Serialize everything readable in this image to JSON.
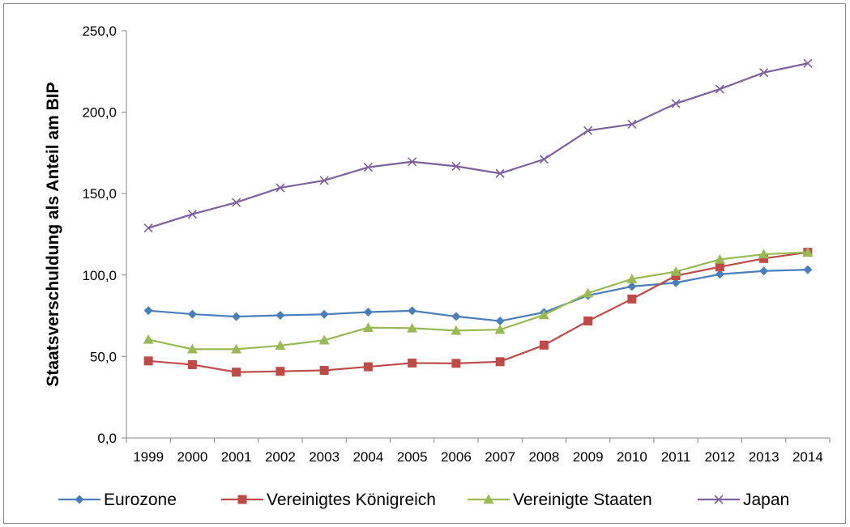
{
  "chart_data": {
    "type": "line",
    "ylabel": "Staatsverschuldung als Anteil am BIP",
    "xlabel": "",
    "title": "",
    "ylim": [
      0,
      250
    ],
    "yticks": [
      "0,0",
      "50,0",
      "100,0",
      "150,0",
      "200,0",
      "250,0"
    ],
    "ytick_values": [
      0,
      50,
      100,
      150,
      200,
      250
    ],
    "categories": [
      "1999",
      "2000",
      "2001",
      "2002",
      "2003",
      "2004",
      "2005",
      "2006",
      "2007",
      "2008",
      "2009",
      "2010",
      "2011",
      "2012",
      "2013",
      "2014"
    ],
    "grid": false,
    "legend_position": "bottom",
    "series": [
      {
        "name": "Eurozone",
        "color": "#4a7ebb",
        "marker": "diamond",
        "values": [
          78.2,
          76.0,
          74.5,
          75.3,
          75.9,
          77.3,
          78.1,
          74.6,
          71.8,
          77.1,
          87.5,
          93.0,
          95.3,
          100.5,
          102.5,
          103.3
        ]
      },
      {
        "name": "Vereinigtes Königreich",
        "color": "#be4b48",
        "marker": "square",
        "values": [
          47.3,
          45.0,
          40.4,
          40.9,
          41.5,
          43.7,
          46.0,
          45.8,
          46.8,
          57.0,
          71.8,
          85.3,
          99.6,
          105.0,
          110.2,
          114.0
        ]
      },
      {
        "name": "Vereinigte Staaten",
        "color": "#98b954",
        "marker": "triangle",
        "values": [
          60.4,
          54.5,
          54.5,
          56.7,
          60.0,
          67.7,
          67.4,
          65.9,
          66.5,
          75.5,
          88.9,
          97.6,
          102.1,
          109.6,
          112.8,
          114.0
        ]
      },
      {
        "name": "Japan",
        "color": "#7d60a0",
        "marker": "x",
        "values": [
          128.9,
          137.4,
          144.6,
          153.6,
          158.1,
          166.2,
          169.6,
          166.8,
          162.4,
          171.1,
          188.7,
          192.6,
          205.3,
          214.2,
          224.3,
          230.0
        ]
      }
    ]
  }
}
